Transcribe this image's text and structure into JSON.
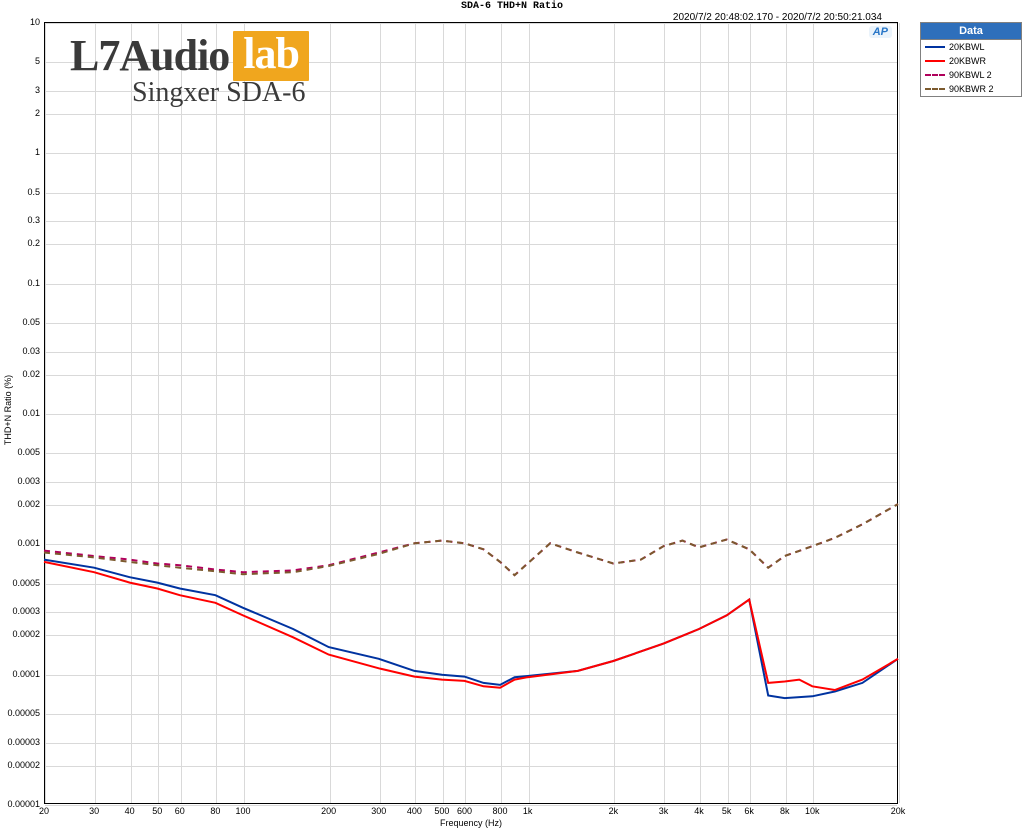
{
  "title": "SDA-6 THD+N Ratio",
  "timestamp": "2020/7/2 20:48:02.170 - 2020/7/2 20:50:21.034",
  "ap_badge": "AP",
  "brand": {
    "prefix": "L7Audio",
    "suffix": "lab",
    "subtitle": "Singxer SDA-6"
  },
  "legend": {
    "header": "Data",
    "items": [
      {
        "label": "20KBWL",
        "color": "#0033a0",
        "dashed": false
      },
      {
        "label": "20KBWR",
        "color": "#ff0000",
        "dashed": false
      },
      {
        "label": "90KBWL 2",
        "color": "#b0005b",
        "dashed": true
      },
      {
        "label": "90KBWR 2",
        "color": "#7c5a2e",
        "dashed": true
      }
    ]
  },
  "chart": {
    "type": "line",
    "x_scale": "log",
    "y_scale": "log",
    "x_label": "Frequency (Hz)",
    "y_label": "THD+N Ratio (%)",
    "x_min": 20,
    "x_max": 20000,
    "y_min": 1e-05,
    "y_max": 10,
    "plot_background": "#ffffff",
    "grid_color": "#d9d9d9",
    "border_color": "#000000",
    "line_width": 2,
    "x_ticks": [
      {
        "v": 20,
        "l": "20"
      },
      {
        "v": 30,
        "l": "30"
      },
      {
        "v": 40,
        "l": "40"
      },
      {
        "v": 50,
        "l": "50"
      },
      {
        "v": 60,
        "l": "60"
      },
      {
        "v": 80,
        "l": "80"
      },
      {
        "v": 100,
        "l": "100"
      },
      {
        "v": 200,
        "l": "200"
      },
      {
        "v": 300,
        "l": "300"
      },
      {
        "v": 400,
        "l": "400"
      },
      {
        "v": 500,
        "l": "500"
      },
      {
        "v": 600,
        "l": "600"
      },
      {
        "v": 800,
        "l": "800"
      },
      {
        "v": 1000,
        "l": "1k"
      },
      {
        "v": 2000,
        "l": "2k"
      },
      {
        "v": 3000,
        "l": "3k"
      },
      {
        "v": 4000,
        "l": "4k"
      },
      {
        "v": 5000,
        "l": "5k"
      },
      {
        "v": 6000,
        "l": "6k"
      },
      {
        "v": 8000,
        "l": "8k"
      },
      {
        "v": 10000,
        "l": "10k"
      },
      {
        "v": 20000,
        "l": "20k"
      }
    ],
    "y_ticks": [
      {
        "v": 10,
        "l": "10"
      },
      {
        "v": 5,
        "l": "5"
      },
      {
        "v": 3,
        "l": "3"
      },
      {
        "v": 2,
        "l": "2"
      },
      {
        "v": 1,
        "l": "1"
      },
      {
        "v": 0.5,
        "l": "0.5"
      },
      {
        "v": 0.3,
        "l": "0.3"
      },
      {
        "v": 0.2,
        "l": "0.2"
      },
      {
        "v": 0.1,
        "l": "0.1"
      },
      {
        "v": 0.05,
        "l": "0.05"
      },
      {
        "v": 0.03,
        "l": "0.03"
      },
      {
        "v": 0.02,
        "l": "0.02"
      },
      {
        "v": 0.01,
        "l": "0.01"
      },
      {
        "v": 0.005,
        "l": "0.005"
      },
      {
        "v": 0.003,
        "l": "0.003"
      },
      {
        "v": 0.002,
        "l": "0.002"
      },
      {
        "v": 0.001,
        "l": "0.001"
      },
      {
        "v": 0.0005,
        "l": "0.0005"
      },
      {
        "v": 0.0003,
        "l": "0.0003"
      },
      {
        "v": 0.0002,
        "l": "0.0002"
      },
      {
        "v": 0.0001,
        "l": "0.0001"
      },
      {
        "v": 5e-05,
        "l": "0.00005"
      },
      {
        "v": 3e-05,
        "l": "0.00003"
      },
      {
        "v": 2e-05,
        "l": "0.00002"
      },
      {
        "v": 1e-05,
        "l": "0.00001"
      }
    ],
    "h_gridlines": [
      10,
      5,
      3,
      2,
      1,
      0.5,
      0.3,
      0.2,
      0.1,
      0.05,
      0.03,
      0.02,
      0.01,
      0.005,
      0.003,
      0.002,
      0.001,
      0.0005,
      0.0003,
      0.0002,
      0.0001,
      5e-05,
      3e-05,
      2e-05,
      1e-05
    ],
    "v_gridlines": [
      20,
      30,
      40,
      50,
      60,
      80,
      100,
      200,
      300,
      400,
      500,
      600,
      800,
      1000,
      2000,
      3000,
      4000,
      5000,
      6000,
      8000,
      10000,
      20000
    ],
    "series": [
      {
        "name": "20KBWL",
        "color": "#0033a0",
        "dashed": false,
        "points": [
          [
            20,
            0.00075
          ],
          [
            30,
            0.00065
          ],
          [
            40,
            0.00055
          ],
          [
            50,
            0.0005
          ],
          [
            60,
            0.00045
          ],
          [
            80,
            0.0004
          ],
          [
            100,
            0.00032
          ],
          [
            150,
            0.00022
          ],
          [
            200,
            0.00016
          ],
          [
            300,
            0.00013
          ],
          [
            400,
            0.000105
          ],
          [
            500,
            9.8e-05
          ],
          [
            600,
            9.5e-05
          ],
          [
            700,
            8.5e-05
          ],
          [
            800,
            8.2e-05
          ],
          [
            900,
            9.4e-05
          ],
          [
            1000,
            9.6e-05
          ],
          [
            1500,
            0.000105
          ],
          [
            2000,
            0.000125
          ],
          [
            3000,
            0.00017
          ],
          [
            4000,
            0.00022
          ],
          [
            5000,
            0.00028
          ],
          [
            6000,
            0.00037
          ],
          [
            7000,
            6.8e-05
          ],
          [
            8000,
            6.5e-05
          ],
          [
            10000,
            6.7e-05
          ],
          [
            12000,
            7.3e-05
          ],
          [
            15000,
            8.5e-05
          ],
          [
            20000,
            0.00013
          ]
        ]
      },
      {
        "name": "20KBWR",
        "color": "#ff0000",
        "dashed": false,
        "points": [
          [
            20,
            0.00072
          ],
          [
            30,
            0.0006
          ],
          [
            40,
            0.0005
          ],
          [
            50,
            0.00045
          ],
          [
            60,
            0.0004
          ],
          [
            80,
            0.00035
          ],
          [
            100,
            0.00028
          ],
          [
            150,
            0.00019
          ],
          [
            200,
            0.00014
          ],
          [
            300,
            0.00011
          ],
          [
            400,
            9.5e-05
          ],
          [
            500,
            9e-05
          ],
          [
            600,
            8.8e-05
          ],
          [
            700,
            8e-05
          ],
          [
            800,
            7.8e-05
          ],
          [
            900,
            9e-05
          ],
          [
            1000,
            9.4e-05
          ],
          [
            1500,
            0.000105
          ],
          [
            2000,
            0.000125
          ],
          [
            3000,
            0.00017
          ],
          [
            4000,
            0.00022
          ],
          [
            5000,
            0.00028
          ],
          [
            6000,
            0.00037
          ],
          [
            7000,
            8.5e-05
          ],
          [
            8000,
            8.7e-05
          ],
          [
            9000,
            9e-05
          ],
          [
            10000,
            8e-05
          ],
          [
            12000,
            7.5e-05
          ],
          [
            15000,
            9e-05
          ],
          [
            20000,
            0.00013
          ]
        ]
      },
      {
        "name": "90KBWL 2",
        "color": "#b0005b",
        "dashed": true,
        "points": [
          [
            20,
            0.00088
          ],
          [
            30,
            0.0008
          ],
          [
            40,
            0.00075
          ],
          [
            50,
            0.0007
          ],
          [
            60,
            0.00068
          ],
          [
            80,
            0.00063
          ],
          [
            100,
            0.0006
          ],
          [
            150,
            0.00062
          ],
          [
            200,
            0.00068
          ],
          [
            300,
            0.00085
          ],
          [
            400,
            0.001
          ],
          [
            500,
            0.00105
          ],
          [
            600,
            0.001
          ],
          [
            700,
            0.0009
          ],
          [
            800,
            0.00072
          ],
          [
            900,
            0.00057
          ],
          [
            1000,
            0.0007
          ],
          [
            1200,
            0.001
          ],
          [
            1500,
            0.00085
          ],
          [
            2000,
            0.0007
          ],
          [
            2500,
            0.00075
          ],
          [
            3000,
            0.00095
          ],
          [
            3500,
            0.00105
          ],
          [
            4000,
            0.00093
          ],
          [
            5000,
            0.00107
          ],
          [
            6000,
            0.0009
          ],
          [
            7000,
            0.00065
          ],
          [
            8000,
            0.0008
          ],
          [
            10000,
            0.00095
          ],
          [
            12000,
            0.0011
          ],
          [
            15000,
            0.0014
          ],
          [
            20000,
            0.002
          ]
        ]
      },
      {
        "name": "90KBWR 2",
        "color": "#7c5a2e",
        "dashed": true,
        "points": [
          [
            20,
            0.00085
          ],
          [
            30,
            0.00078
          ],
          [
            40,
            0.00072
          ],
          [
            50,
            0.00068
          ],
          [
            60,
            0.00065
          ],
          [
            80,
            0.00061
          ],
          [
            100,
            0.00058
          ],
          [
            150,
            0.0006
          ],
          [
            200,
            0.00067
          ],
          [
            300,
            0.00083
          ],
          [
            400,
            0.001
          ],
          [
            500,
            0.00105
          ],
          [
            600,
            0.001
          ],
          [
            700,
            0.0009
          ],
          [
            800,
            0.00072
          ],
          [
            900,
            0.00057
          ],
          [
            1000,
            0.0007
          ],
          [
            1200,
            0.001
          ],
          [
            1500,
            0.00085
          ],
          [
            2000,
            0.0007
          ],
          [
            2500,
            0.00075
          ],
          [
            3000,
            0.00095
          ],
          [
            3500,
            0.00105
          ],
          [
            4000,
            0.00093
          ],
          [
            5000,
            0.00107
          ],
          [
            6000,
            0.0009
          ],
          [
            7000,
            0.00065
          ],
          [
            8000,
            0.0008
          ],
          [
            10000,
            0.00095
          ],
          [
            12000,
            0.0011
          ],
          [
            15000,
            0.0014
          ],
          [
            20000,
            0.002
          ]
        ]
      }
    ]
  }
}
